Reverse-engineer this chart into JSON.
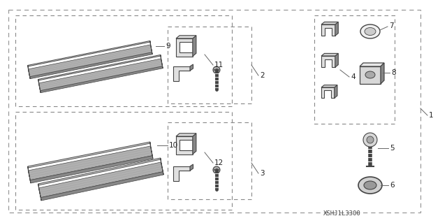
{
  "bg_color": "#ffffff",
  "dashed_color": "#888888",
  "part_color_dark": "#444444",
  "part_color_mid": "#888888",
  "part_color_light": "#cccccc",
  "part_color_lighter": "#e0e0e0",
  "text_color": "#222222",
  "diagram_code": "XSHJ1L3300",
  "label_fontsize": 7.5,
  "code_fontsize": 6.5
}
